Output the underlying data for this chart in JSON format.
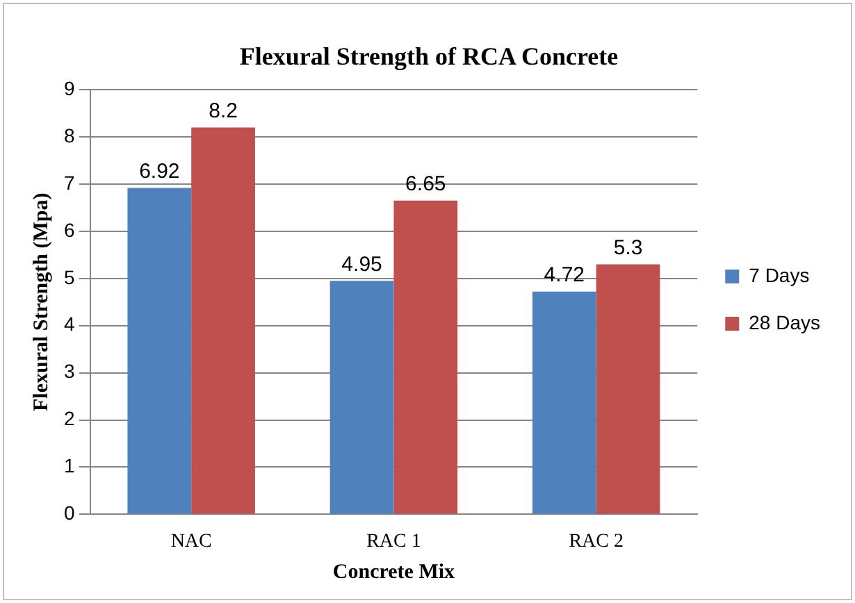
{
  "chart_data": {
    "type": "bar",
    "title": "Flexural Strength of RCA Concrete",
    "xlabel": "Concrete Mix",
    "ylabel": "Flexural Strength (Mpa)",
    "categories": [
      "NAC",
      "RAC 1",
      "RAC 2"
    ],
    "series": [
      {
        "name": "7 Days",
        "color": "#4f81bd",
        "values": [
          6.92,
          4.95,
          4.72
        ]
      },
      {
        "name": "28 Days",
        "color": "#c0504d",
        "values": [
          8.2,
          6.65,
          5.3
        ]
      }
    ],
    "ylim": [
      0,
      9
    ],
    "yticks": [
      0,
      1,
      2,
      3,
      4,
      5,
      6,
      7,
      8,
      9
    ],
    "grid": "y",
    "legend": "right",
    "data_labels": true
  }
}
